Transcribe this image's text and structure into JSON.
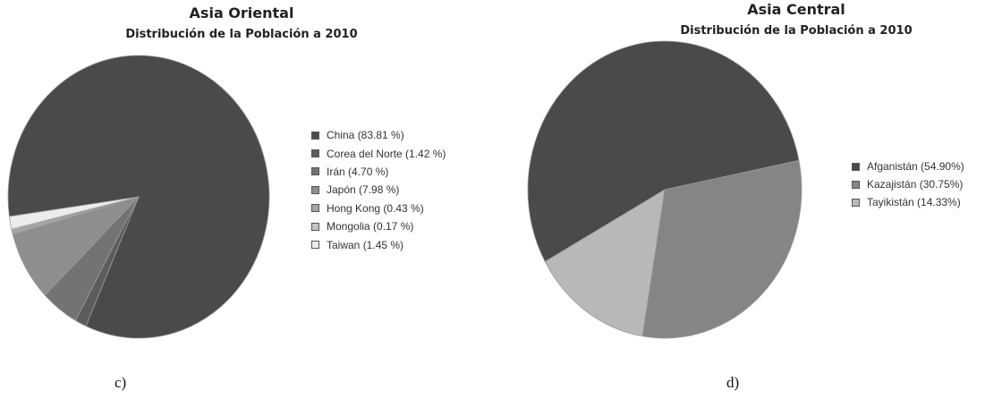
{
  "chart_data": [
    {
      "type": "pie",
      "title": "Asia Oriental",
      "subtitle": "Distribución de la Población a 2010",
      "panel_label": "c)",
      "legend_position": "right",
      "slices": [
        {
          "label": "China (83.81 %)",
          "name": "China",
          "value": 83.81,
          "color": "#4a4a4a"
        },
        {
          "label": "Corea del Norte (1.42 %)",
          "name": "Corea del Norte",
          "value": 1.42,
          "color": "#5c5c5c"
        },
        {
          "label": "Irán (4.70 %)",
          "name": "Irán",
          "value": 4.7,
          "color": "#737373"
        },
        {
          "label": "Japón (7.98 %)",
          "name": "Japón",
          "value": 7.98,
          "color": "#8e8e8e"
        },
        {
          "label": "Hong Kong (0.43 %)",
          "name": "Hong Kong",
          "value": 0.43,
          "color": "#a6a6a6"
        },
        {
          "label": "Mongolia (0.17 %)",
          "name": "Mongolia",
          "value": 0.17,
          "color": "#c4c4c4"
        },
        {
          "label": "Taiwan (1.45 %)",
          "name": "Taiwan",
          "value": 1.45,
          "color": "#ececec"
        }
      ]
    },
    {
      "type": "pie",
      "title": "Asia Central",
      "subtitle": "Distribución de la Población a 2010",
      "panel_label": "d)",
      "legend_position": "right",
      "slices": [
        {
          "label": "Afganistán (54.90%)",
          "name": "Afganistán",
          "value": 54.9,
          "color": "#4a4a4a"
        },
        {
          "label": "Kazajistán (30.75%)",
          "name": "Kazajistán",
          "value": 30.75,
          "color": "#858585"
        },
        {
          "label": "Tayikistán (14.33%)",
          "name": "Tayikistán",
          "value": 14.33,
          "color": "#b8b8b8"
        }
      ]
    }
  ]
}
